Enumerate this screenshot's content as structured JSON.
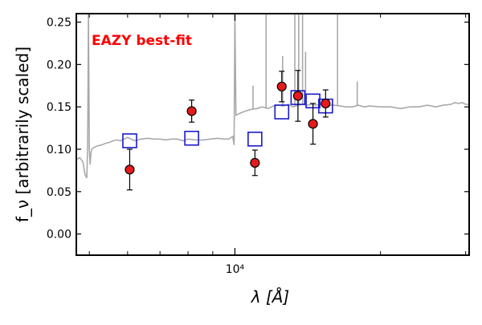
{
  "chart_data": {
    "type": "scatter",
    "annotation": "EAZY best-fit",
    "xlabel": "λ [Å]",
    "ylabel": "f_ν [arbitrarily scaled]",
    "x_scale": "log",
    "xlim": [
      4700,
      30500
    ],
    "ylim": [
      -0.025,
      0.26
    ],
    "yticks": [
      0.0,
      0.05,
      0.1,
      0.15,
      0.2,
      0.25
    ],
    "ytick_labels": [
      "0.00",
      "0.05",
      "0.10",
      "0.15",
      "0.20",
      "0.25"
    ],
    "xtick_major": [
      10000
    ],
    "xtick_major_labels": [
      "10⁴"
    ],
    "xtick_minor": [
      5000,
      6000,
      7000,
      8000,
      9000,
      20000,
      30000
    ],
    "grid": false,
    "colors": {
      "observed_fill": "#e41a1c",
      "model_square": "#1a1acd",
      "template_line": "#a9a9a9",
      "annotation": "#ff0000"
    },
    "series": [
      {
        "kind": "observed_with_errors",
        "x": [
          6060,
          8140,
          11000,
          12500,
          13500,
          14500,
          15400
        ],
        "y": [
          0.076,
          0.145,
          0.084,
          0.174,
          0.163,
          0.13,
          0.154
        ],
        "yerr": [
          0.024,
          0.013,
          0.015,
          0.018,
          0.03,
          0.024,
          0.016
        ]
      },
      {
        "kind": "model_photometry",
        "x": [
          6060,
          8140,
          11000,
          12500,
          13500,
          14500,
          15400
        ],
        "y": [
          0.11,
          0.113,
          0.112,
          0.144,
          0.161,
          0.157,
          0.151
        ]
      },
      {
        "kind": "template_spectrum",
        "x": [
          4700,
          4780,
          4850,
          4900,
          4940,
          4960,
          4980,
          5000,
          5020,
          5040,
          5060,
          5100,
          5200,
          5300,
          5400,
          5500,
          5600,
          5700,
          5800,
          5900,
          6000,
          6200,
          6400,
          6600,
          6800,
          7000,
          7200,
          7400,
          7600,
          7800,
          8000,
          8300,
          8600,
          8900,
          9200,
          9500,
          9700,
          9900,
          9960,
          10000,
          10050,
          10200,
          10500,
          10800,
          11100,
          11400,
          11700,
          12000,
          12300,
          12600,
          12900,
          13200,
          13500,
          13800,
          14100,
          14400,
          14700,
          15000,
          15500,
          16000,
          16500,
          17000,
          17500,
          18000,
          18500,
          19000,
          20000,
          21000,
          22000,
          23000,
          24000,
          25000,
          26000,
          27000,
          28000,
          28500,
          29000,
          29500,
          30000,
          30500
        ],
        "y": [
          0.088,
          0.09,
          0.085,
          0.07,
          0.066,
          0.1,
          0.26,
          0.1,
          0.082,
          0.096,
          0.1,
          0.102,
          0.104,
          0.105,
          0.107,
          0.108,
          0.11,
          0.111,
          0.11,
          0.112,
          0.114,
          0.11,
          0.112,
          0.113,
          0.112,
          0.112,
          0.111,
          0.112,
          0.112,
          0.11,
          0.112,
          0.111,
          0.111,
          0.112,
          0.113,
          0.112,
          0.112,
          0.115,
          0.105,
          0.26,
          0.14,
          0.142,
          0.145,
          0.147,
          0.148,
          0.15,
          0.148,
          0.151,
          0.152,
          0.151,
          0.153,
          0.15,
          0.152,
          0.153,
          0.152,
          0.153,
          0.152,
          0.153,
          0.152,
          0.152,
          0.151,
          0.15,
          0.15,
          0.152,
          0.15,
          0.151,
          0.15,
          0.15,
          0.148,
          0.15,
          0.15,
          0.152,
          0.15,
          0.152,
          0.153,
          0.155,
          0.154,
          0.155,
          0.153,
          0.153
        ],
        "spikes": [
          {
            "x": 10900,
            "y": 0.175
          },
          {
            "x": 11600,
            "y": 0.26
          },
          {
            "x": 12550,
            "y": 0.21
          },
          {
            "x": 13300,
            "y": 0.26
          },
          {
            "x": 13550,
            "y": 0.26
          },
          {
            "x": 13800,
            "y": 0.26
          },
          {
            "x": 14000,
            "y": 0.215
          },
          {
            "x": 16300,
            "y": 0.265
          },
          {
            "x": 17900,
            "y": 0.18
          }
        ]
      }
    ]
  }
}
